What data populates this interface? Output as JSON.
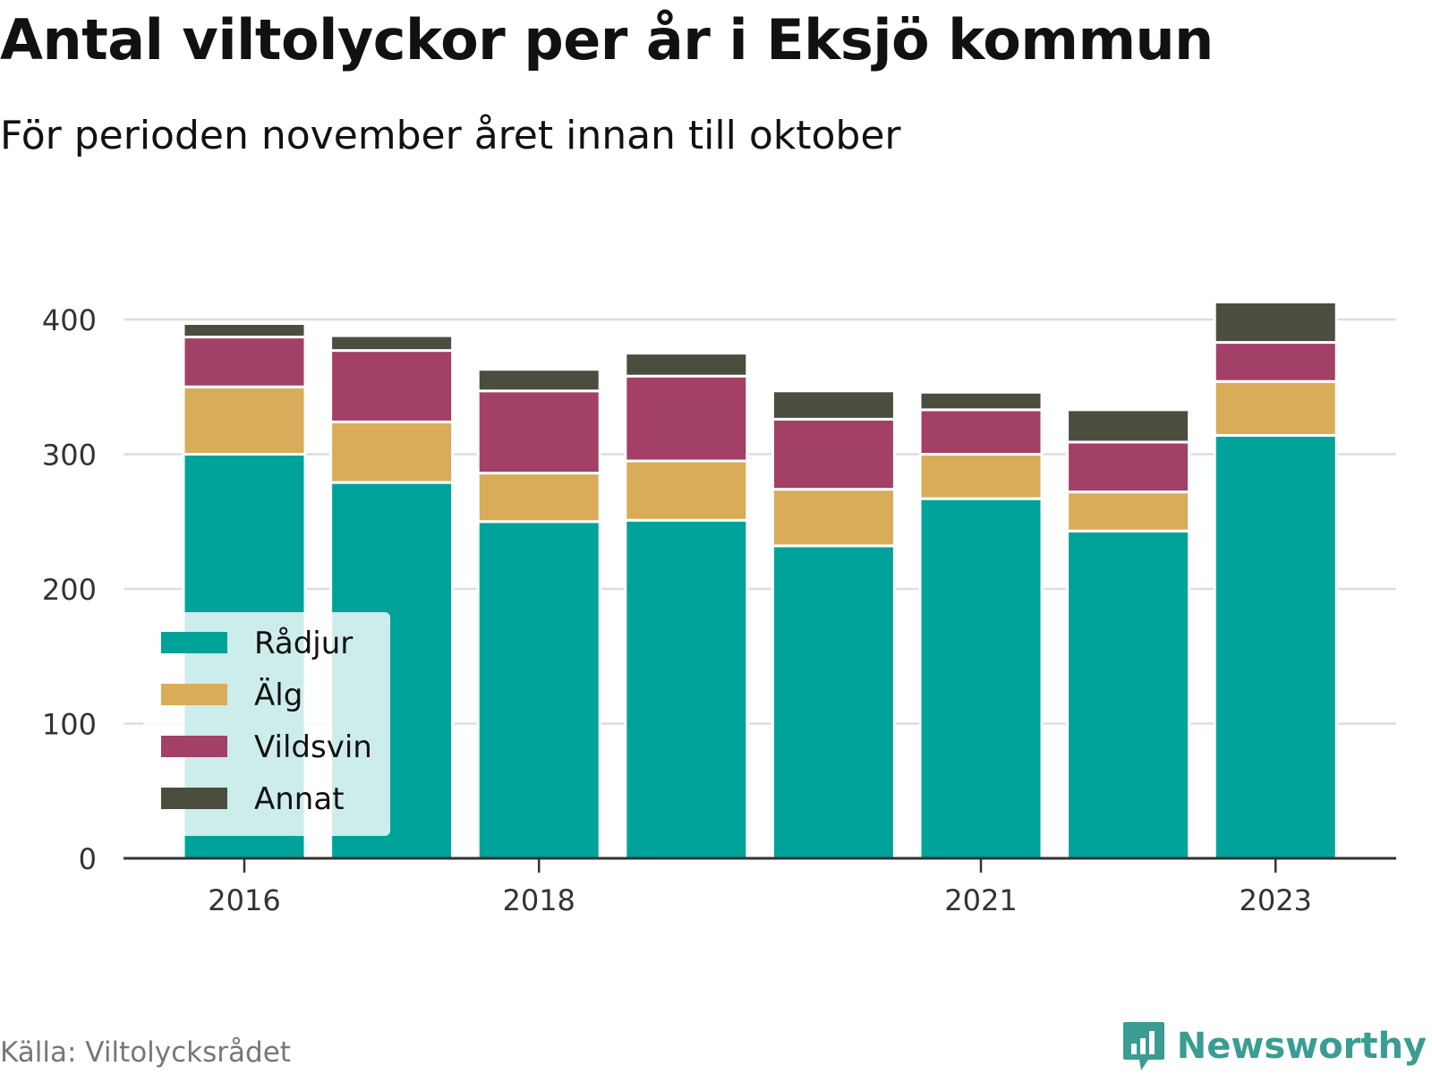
{
  "chart_data": {
    "type": "bar",
    "stacked": true,
    "title": "Antal viltolyckor per år i Eksjö kommun",
    "subtitle": "För perioden november året innan till oktober",
    "categories": [
      "2016",
      "2017",
      "2018",
      "2019",
      "2020",
      "2021",
      "2022",
      "2023"
    ],
    "x_tick_labels": [
      "2016",
      "2018",
      "2021",
      "2023"
    ],
    "series": [
      {
        "name": "Rådjur",
        "color": "#00a39a",
        "values": [
          300,
          279,
          250,
          251,
          232,
          267,
          243,
          314
        ]
      },
      {
        "name": "Älg",
        "color": "#d9ac5a",
        "values": [
          50,
          45,
          36,
          44,
          42,
          33,
          29,
          40
        ]
      },
      {
        "name": "Vildsvin",
        "color": "#a34066",
        "values": [
          37,
          53,
          61,
          63,
          52,
          33,
          37,
          29
        ]
      },
      {
        "name": "Annat",
        "color": "#4b4d3f",
        "values": [
          10,
          11,
          16,
          17,
          21,
          13,
          24,
          30
        ]
      }
    ],
    "ylim": [
      0,
      420
    ],
    "yticks": [
      0,
      100,
      200,
      300,
      400
    ],
    "grid": true,
    "legend": "bottom-left"
  },
  "footer": {
    "source": "Källa: Viltolycksrådet",
    "brand": "Newsworthy"
  }
}
